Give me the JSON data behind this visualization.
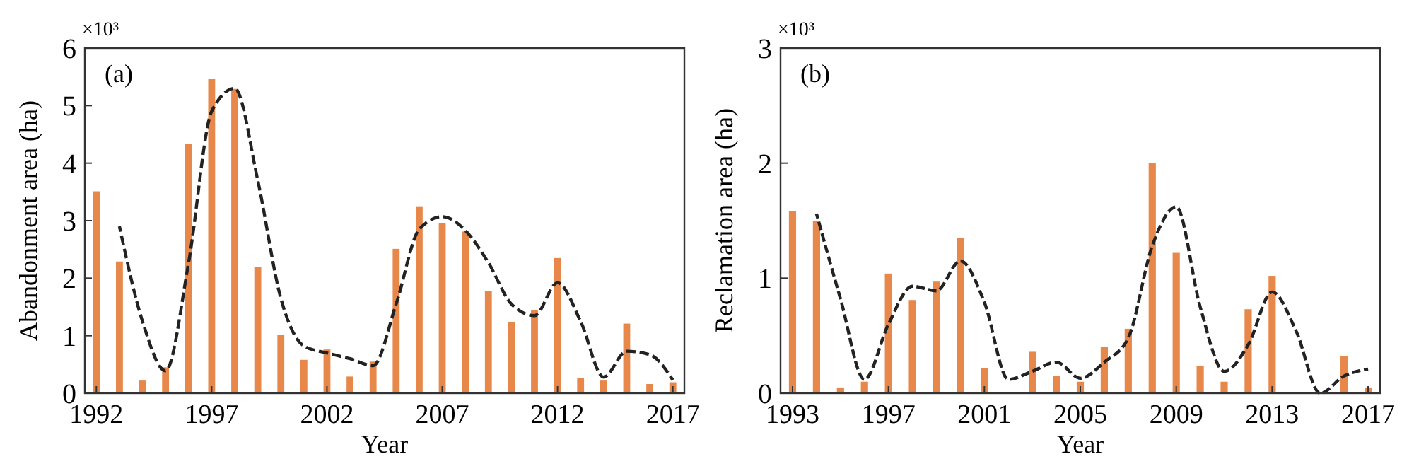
{
  "chart_data": [
    {
      "type": "bar",
      "xlabel": "Year",
      "ylabel": "Abandonment area (ha)",
      "annotations": [
        "(a)",
        "×10³"
      ],
      "x": [
        1992,
        1993,
        1994,
        1995,
        1996,
        1997,
        1998,
        1999,
        2000,
        2001,
        2002,
        2003,
        2004,
        2005,
        2006,
        2007,
        2008,
        2009,
        2010,
        2011,
        2012,
        2013,
        2014,
        2015,
        2016,
        2017
      ],
      "xlim": [
        1991.5,
        2017.5
      ],
      "xticks": [
        1992,
        1997,
        2002,
        2007,
        2012,
        2017
      ],
      "ylim": [
        0,
        6
      ],
      "yticks": [
        0,
        1,
        2,
        3,
        4,
        5,
        6
      ],
      "series": [
        {
          "color": "#e8874a",
          "values": [
            3.51,
            2.29,
            0.22,
            0.45,
            4.33,
            5.47,
            5.29,
            2.2,
            1.02,
            0.58,
            0.76,
            0.29,
            0.55,
            2.51,
            3.25,
            2.96,
            2.81,
            1.78,
            1.24,
            1.45,
            2.35,
            0.26,
            0.22,
            1.21,
            0.16,
            0.19
          ]
        },
        {
          "type": "line",
          "color": "#222222",
          "line_style": "dashed",
          "x": [
            1993,
            1994,
            1995,
            1996,
            1997,
            1998,
            1999,
            2000,
            2001,
            2002,
            2003,
            2004,
            2005,
            2006,
            2007,
            2008,
            2009,
            2010,
            2011,
            2012,
            2013,
            2014,
            2015,
            2016,
            2017
          ],
          "values": [
            2.9,
            1.25,
            0.39,
            2.27,
            4.9,
            5.3,
            3.7,
            1.65,
            0.82,
            0.7,
            0.6,
            0.48,
            1.55,
            2.85,
            3.07,
            2.83,
            2.27,
            1.55,
            1.35,
            1.92,
            1.25,
            0.28,
            0.73,
            0.67,
            0.23
          ]
        }
      ]
    },
    {
      "type": "bar",
      "xlabel": "Year",
      "ylabel": "Reclamation area (ha)",
      "annotations": [
        "(b)",
        "×10³"
      ],
      "x": [
        1993,
        1994,
        1995,
        1996,
        1997,
        1998,
        1999,
        2000,
        2001,
        2002,
        2003,
        2004,
        2005,
        2006,
        2007,
        2008,
        2009,
        2010,
        2011,
        2012,
        2013,
        2014,
        2015,
        2016,
        2017
      ],
      "xlim": [
        1992.5,
        2017.5
      ],
      "xticks": [
        1993,
        1997,
        2001,
        2005,
        2009,
        2013,
        2017
      ],
      "ylim": [
        0,
        3
      ],
      "yticks": [
        0,
        1,
        2,
        3
      ],
      "series": [
        {
          "color": "#e8874a",
          "values": [
            1.58,
            1.5,
            0.05,
            0.1,
            1.04,
            0.81,
            0.97,
            1.35,
            0.22,
            0,
            0.36,
            0.15,
            0.1,
            0.4,
            0.56,
            2.0,
            1.22,
            0.24,
            0.1,
            0.73,
            1.02,
            0,
            0,
            0.32,
            0.05
          ]
        },
        {
          "type": "line",
          "color": "#222222",
          "line_style": "dashed",
          "x": [
            1994,
            1995,
            1996,
            1997,
            1998,
            1999,
            2000,
            2001,
            2002,
            2003,
            2004,
            2005,
            2006,
            2007,
            2008,
            2009,
            2010,
            2011,
            2012,
            2013,
            2014,
            2015,
            2016,
            2017
          ],
          "values": [
            1.56,
            0.82,
            0.12,
            0.6,
            0.93,
            0.89,
            1.15,
            0.79,
            0.12,
            0.19,
            0.27,
            0.13,
            0.27,
            0.48,
            1.28,
            1.62,
            0.75,
            0.19,
            0.42,
            0.88,
            0.54,
            0,
            0.15,
            0.21
          ]
        }
      ]
    }
  ]
}
